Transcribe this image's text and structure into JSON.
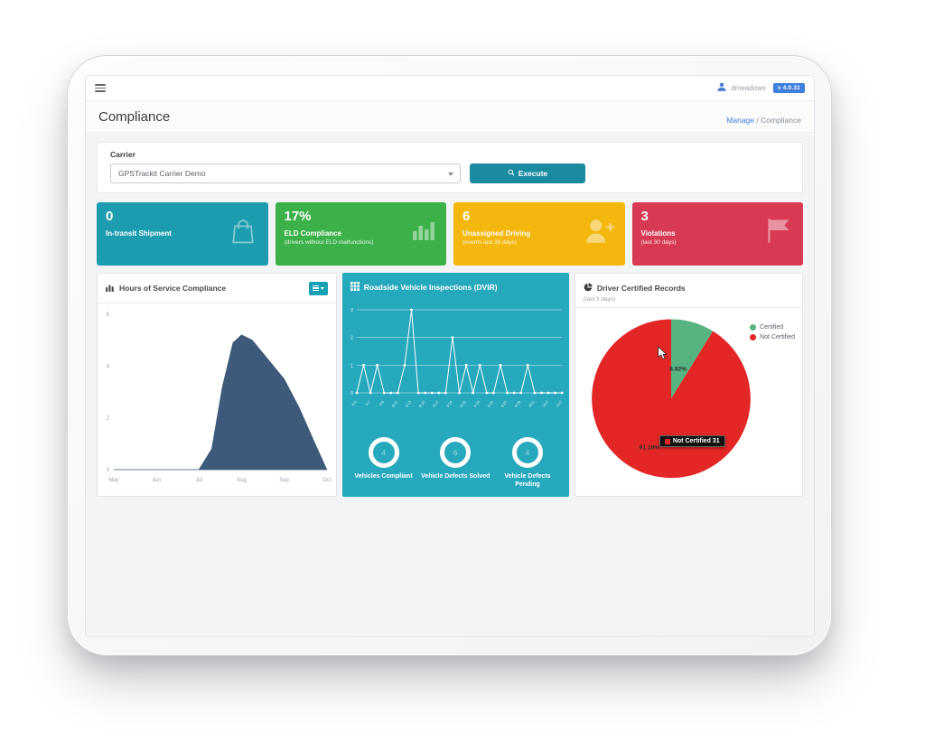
{
  "topbar": {
    "user": "dmeadows",
    "version": "v 4.0.31"
  },
  "page": {
    "title": "Compliance",
    "breadcrumb_link": "Manage",
    "breadcrumb_sep": " / ",
    "breadcrumb_current": "Compliance"
  },
  "carrier": {
    "label": "Carrier",
    "selected": "GPSTrackit Carrier Demo",
    "execute": "Execute"
  },
  "kpis": [
    {
      "value": "0",
      "label": "In-transit Shipment",
      "sublabel": "",
      "color": "#1d9cb0"
    },
    {
      "value": "17%",
      "label": "ELD Compliance",
      "sublabel": "(drivers without ELD malfunctions)",
      "color": "#3cb049"
    },
    {
      "value": "6",
      "label": "Unassigned Driving",
      "sublabel": "(events last 30 days)",
      "color": "#f4b70d"
    },
    {
      "value": "3",
      "label": "Violations",
      "sublabel": "(last 30 days)",
      "color": "#d73a52"
    }
  ],
  "panels": {
    "hos": {
      "title": "Hours of Service Compliance"
    },
    "dvir": {
      "title": "Roadside Vehicle Inspections (DVIR)",
      "circles": [
        {
          "value": "4",
          "label": "Vehicles Compliant"
        },
        {
          "value": "6",
          "label": "Vehicle Defects Solved"
        },
        {
          "value": "4",
          "label": "Vehicle Defects Pending"
        }
      ]
    },
    "driver": {
      "title": "Driver Certified Records",
      "subtitle": "(last 3 days)",
      "legend": [
        {
          "label": "Certified",
          "color": "#55b47f"
        },
        {
          "label": "Not Certified",
          "color": "#e32726"
        }
      ],
      "tooltip": {
        "label": "Not Certified",
        "value": "31",
        "swatch": "#e32726"
      }
    }
  },
  "chart_data": [
    {
      "id": "hos",
      "type": "area",
      "title": "Hours of Service Compliance",
      "categories": [
        "May",
        "Jun",
        "Jul",
        "Aug",
        "Sep",
        "Oct"
      ],
      "points": [
        [
          0,
          0
        ],
        [
          1,
          0
        ],
        [
          2,
          0
        ],
        [
          2.3,
          0.8
        ],
        [
          2.55,
          3.2
        ],
        [
          2.8,
          4.9
        ],
        [
          3.0,
          5.2
        ],
        [
          3.25,
          5.0
        ],
        [
          3.6,
          4.3
        ],
        [
          4.0,
          3.5
        ],
        [
          4.35,
          2.4
        ],
        [
          4.7,
          1.1
        ],
        [
          5,
          0
        ]
      ],
      "ylim": [
        0,
        6
      ],
      "yticks": [
        0,
        2,
        4,
        6
      ],
      "color": "#3d5a7a",
      "grid": false
    },
    {
      "id": "dvir",
      "type": "line",
      "title": "Roadside Vehicle Inspections (DVIR)",
      "categories": [
        "9-5",
        "9-6",
        "9-7",
        "9-8",
        "9-9",
        "9-10",
        "9-11",
        "9-12",
        "9-13",
        "9-14",
        "9-15",
        "9-16",
        "9-17",
        "9-18",
        "9-19",
        "9-20",
        "9-21",
        "9-22",
        "9-23",
        "9-24",
        "9-25",
        "9-26",
        "9-27",
        "9-28",
        "9-29",
        "9-30",
        "10-1",
        "10-2",
        "10-3",
        "10-4",
        "10-5"
      ],
      "values": [
        0,
        1,
        0,
        1,
        0,
        0,
        0,
        1,
        3,
        0,
        0,
        0,
        0,
        0,
        2,
        0,
        1,
        0,
        1,
        0,
        0,
        1,
        0,
        0,
        0,
        1,
        0,
        0,
        0,
        0,
        0
      ],
      "ylim": [
        0,
        3
      ],
      "yticks": [
        0,
        1,
        2,
        3
      ],
      "label_step": 2,
      "color": "#ffffff",
      "grid": true
    },
    {
      "id": "driver_certified",
      "type": "pie",
      "title": "Driver Certified Records",
      "slices": [
        {
          "name": "Certified",
          "pct": 8.82,
          "label": "8.82%",
          "color": "#55b47f"
        },
        {
          "name": "Not Certified",
          "pct": 91.18,
          "label": "91.18%",
          "color": "#e32726"
        }
      ],
      "legend_position": "right"
    }
  ]
}
